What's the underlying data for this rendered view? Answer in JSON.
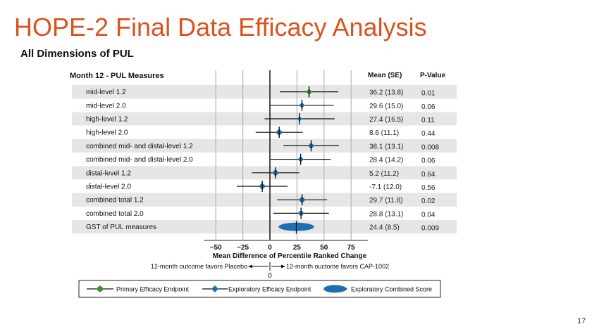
{
  "slide": {
    "title": "HOPE-2 Final Data Efficacy Analysis",
    "subtitle": "All Dimensions of PUL",
    "page_number": "17"
  },
  "colors": {
    "title": "#D9531E",
    "primary_marker": "#3A8F2E",
    "exploratory_marker": "#1F6FB0",
    "row_shade": "#E6E6E6",
    "gridline": "#B4B4B4"
  },
  "chart_data": {
    "type": "forest",
    "title": "Month 12 - PUL Measures",
    "column_headers": {
      "mean": "Mean (SE)",
      "pvalue": "P-Value"
    },
    "xlabel": "Mean Difference of Percentile Ranked Change",
    "xlim": [
      -60,
      90
    ],
    "xticks": [
      -50,
      -25,
      0,
      25,
      50,
      75
    ],
    "xtick_labels": [
      "−50",
      "−25",
      "0",
      "25",
      "50",
      "75"
    ],
    "grid": true,
    "ci_rule": "mean ± 1.96 × SE",
    "rows": [
      {
        "label": "mid-level 1.2",
        "mean": 36.2,
        "se": 13.8,
        "mean_se": "36.2 (13.8)",
        "p": "0.01",
        "kind": "primary",
        "shaded": true
      },
      {
        "label": "mid-level 2.0",
        "mean": 29.6,
        "se": 15.0,
        "mean_se": "29.6 (15.0)",
        "p": "0.06",
        "kind": "exploratory",
        "shaded": false
      },
      {
        "label": "high-level 1.2",
        "mean": 27.4,
        "se": 16.5,
        "mean_se": "27.4 (16.5)",
        "p": "0.11",
        "kind": "exploratory",
        "shaded": true
      },
      {
        "label": "high-level 2.0",
        "mean": 8.6,
        "se": 11.1,
        "mean_se": "8.6 (11.1)",
        "p": "0.44",
        "kind": "exploratory",
        "shaded": false
      },
      {
        "label": "combined mid- and distal-level 1.2",
        "mean": 38.1,
        "se": 13.1,
        "mean_se": "38.1 (13.1)",
        "p": "0.008",
        "kind": "exploratory",
        "shaded": true
      },
      {
        "label": "combined mid- and distal-level 2.0",
        "mean": 28.4,
        "se": 14.2,
        "mean_se": "28.4 (14.2)",
        "p": "0.06",
        "kind": "exploratory",
        "shaded": false
      },
      {
        "label": "distal-level 1.2",
        "mean": 5.2,
        "se": 11.2,
        "mean_se": "5.2 (11.2)",
        "p": "0.64",
        "kind": "exploratory",
        "shaded": true
      },
      {
        "label": "distal-level 2.0",
        "mean": -7.1,
        "se": 12.0,
        "mean_se": "-7.1 (12.0)",
        "p": "0.56",
        "kind": "exploratory",
        "shaded": false
      },
      {
        "label": "combined total 1.2",
        "mean": 29.7,
        "se": 11.8,
        "mean_se": "29.7 (11.8)",
        "p": "0.02",
        "kind": "exploratory",
        "shaded": true
      },
      {
        "label": "combined total 2.0",
        "mean": 28.8,
        "se": 13.1,
        "mean_se": "28.8 (13.1)",
        "p": "0.04",
        "kind": "exploratory",
        "shaded": false
      },
      {
        "label": "GST of PUL measures",
        "mean": 24.4,
        "se": 8.5,
        "mean_se": "24.4 (8.5)",
        "p": "0.009",
        "kind": "combined",
        "shaded": true
      }
    ],
    "direction_annotation": {
      "left": "12-month outcome favors Placebo",
      "right": "12-month ouctome favors CAP-1002",
      "center": "0"
    },
    "legend": {
      "placement": "bottom",
      "entries": [
        {
          "label": "Primary Efficacy Endpoint",
          "kind": "primary"
        },
        {
          "label": "Exploratory Efficacy Endpoint",
          "kind": "exploratory"
        },
        {
          "label": "Exploratory Combined Score",
          "kind": "combined"
        }
      ]
    }
  }
}
